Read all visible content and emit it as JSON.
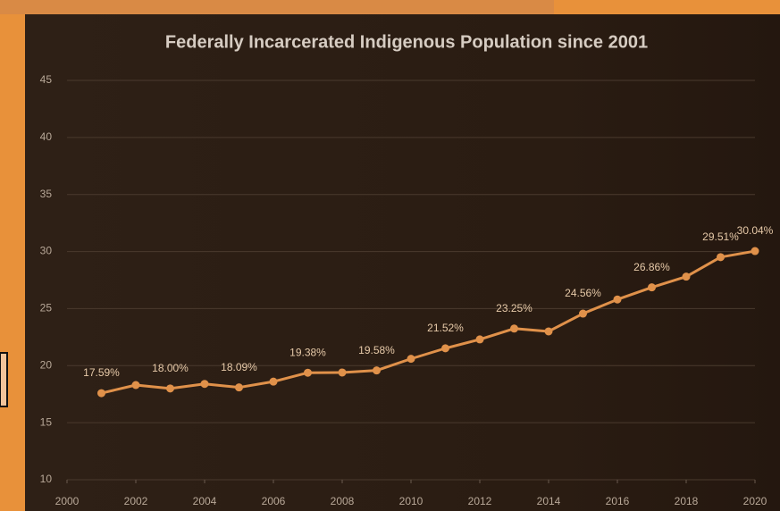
{
  "chart_data": {
    "type": "line",
    "title": "Federally Incarcerated Indigenous Population since 2001",
    "x": [
      2001,
      2002,
      2003,
      2004,
      2005,
      2006,
      2007,
      2008,
      2009,
      2010,
      2011,
      2012,
      2013,
      2014,
      2015,
      2016,
      2017,
      2018,
      2019,
      2020
    ],
    "values": [
      17.59,
      18.3,
      18.0,
      18.4,
      18.09,
      18.6,
      19.38,
      19.4,
      19.58,
      20.6,
      21.52,
      22.3,
      23.25,
      23.0,
      24.56,
      25.8,
      26.86,
      27.8,
      29.51,
      30.04
    ],
    "value_labels": [
      "17.59%",
      null,
      "18.00%",
      null,
      "18.09%",
      null,
      "19.38%",
      null,
      "19.58%",
      null,
      "21.52%",
      null,
      "23.25%",
      null,
      "24.56%",
      null,
      "26.86%",
      null,
      "29.51%",
      "30.04%"
    ],
    "color": "#e0914a",
    "xlim": [
      2000,
      2020
    ],
    "xticks": [
      2000,
      2002,
      2004,
      2006,
      2008,
      2010,
      2012,
      2014,
      2016,
      2018,
      2020
    ],
    "ylim": [
      10,
      45
    ],
    "yticks": [
      10,
      15,
      20,
      25,
      30,
      35,
      40,
      45
    ],
    "grid": true
  }
}
